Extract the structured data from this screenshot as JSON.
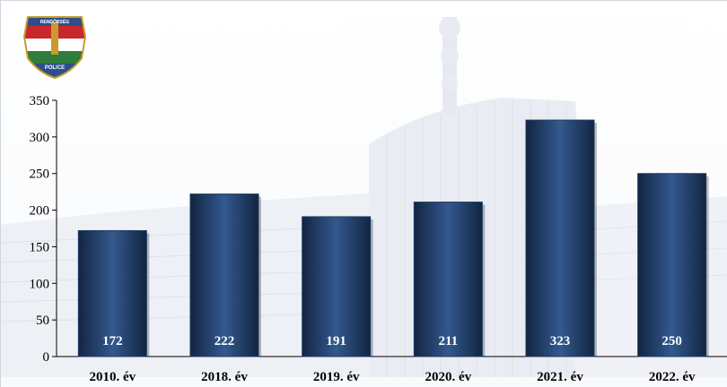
{
  "badge": {
    "top_text": "RENDŐRSÉG",
    "bottom_text": "POLICE",
    "colors": {
      "shield_red": "#c8282c",
      "shield_white": "#ffffff",
      "shield_green": "#2f7d3a",
      "frame_blue": "#2c4f8c",
      "gold": "#c99a2e"
    }
  },
  "chart_data": {
    "type": "bar",
    "categories": [
      "2010. év",
      "2018. év",
      "2019. év",
      "2020. év",
      "2021. év",
      "2022. év"
    ],
    "values": [
      172,
      222,
      191,
      211,
      323,
      250
    ],
    "data_labels": [
      "172",
      "222",
      "191",
      "211",
      "323",
      "250"
    ],
    "yticks": [
      "0",
      "50",
      "100",
      "150",
      "200",
      "250",
      "300",
      "350"
    ],
    "ylim": [
      0,
      350
    ],
    "grid": false,
    "legend": "none",
    "colors": {
      "bar": "#1f3a63",
      "bar_highlight": "#33598f",
      "bar_shadow": "#122540",
      "axis": "#000000"
    }
  }
}
